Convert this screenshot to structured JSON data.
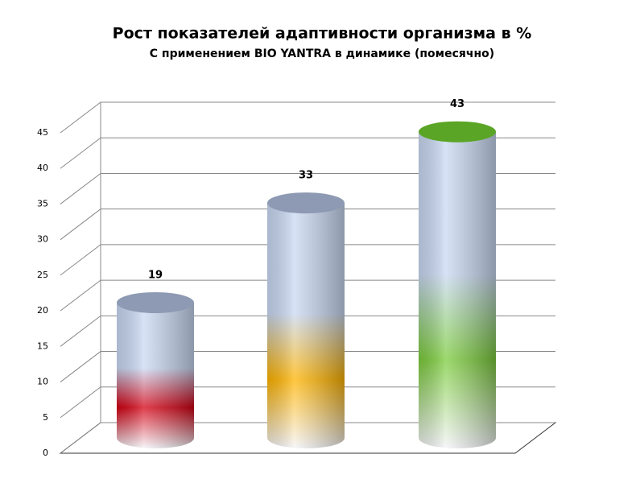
{
  "chart_data": {
    "type": "bar3d",
    "title": "Рост показателей адаптивности организма в %",
    "subtitle": "С применением BIO YANTRA  в динамике (помесячно)",
    "categories": [
      null,
      null,
      null
    ],
    "values": [
      19,
      33,
      43
    ],
    "colors": [
      "#d40012",
      "#ffb400",
      "#7ccc3c"
    ],
    "ylim": [
      0,
      45
    ],
    "yticks": [
      0,
      5,
      10,
      15,
      20,
      25,
      30,
      35,
      40,
      45
    ],
    "grid": true
  }
}
